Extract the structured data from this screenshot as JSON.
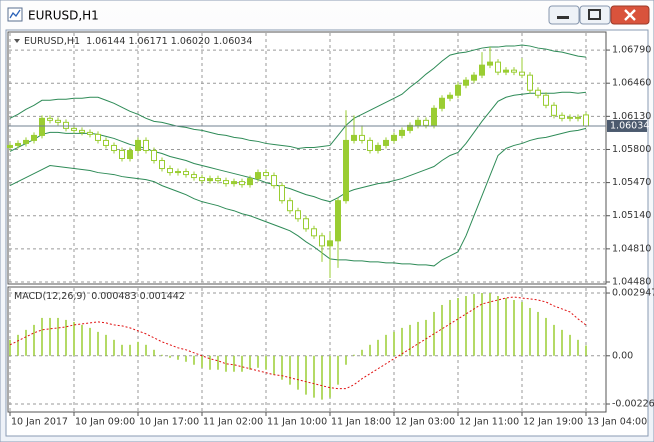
{
  "window": {
    "title": "EURUSD,H1"
  },
  "chart_data": [
    {
      "type": "candlestick",
      "label": "EURUSD,H1",
      "header_values": [
        {
          "value": 1.06144,
          "label": "1.06144"
        },
        {
          "value": 1.06171,
          "label": "1.06171"
        },
        {
          "value": 1.0602,
          "label": "1.06020"
        },
        {
          "value": 1.06034,
          "label": "1.06034"
        }
      ],
      "categories": [
        "10 Jan 2017",
        null,
        null,
        null,
        null,
        null,
        null,
        null,
        "10 Jan 09:00",
        null,
        null,
        null,
        null,
        null,
        null,
        null,
        "10 Jan 17:00",
        null,
        null,
        null,
        null,
        null,
        null,
        null,
        "11 Jan 02:00",
        null,
        null,
        null,
        null,
        null,
        null,
        null,
        "11 Jan 10:00",
        null,
        null,
        null,
        null,
        null,
        null,
        null,
        "11 Jan 18:00",
        null,
        null,
        null,
        null,
        null,
        null,
        null,
        "12 Jan 03:00",
        null,
        null,
        null,
        null,
        null,
        null,
        null,
        "12 Jan 11:00",
        null,
        null,
        null,
        null,
        null,
        null,
        null,
        "12 Jan 19:00",
        null,
        null,
        null,
        null,
        null,
        null,
        null,
        "13 Jan 04:00"
      ],
      "open": [
        1.0582,
        1.0584,
        1.0586,
        1.0589,
        1.0594,
        1.0611,
        1.0609,
        1.0607,
        1.0601,
        1.0599,
        1.0597,
        1.0595,
        1.0589,
        1.0584,
        1.0579,
        1.0571,
        1.0579,
        1.0589,
        1.0579,
        1.0569,
        1.0561,
        1.0557,
        1.0558,
        1.0555,
        1.0552,
        1.0549,
        1.0551,
        1.0549,
        1.0546,
        1.0548,
        1.0545,
        1.0551,
        1.0557,
        1.0554,
        1.0544,
        1.0529,
        1.0519,
        1.0511,
        1.0501,
        1.0494,
        1.0484,
        1.0489,
        1.0529,
        1.0589,
        1.0594,
        1.0589,
        1.0579,
        1.0584,
        1.0589,
        1.0594,
        1.0599,
        1.0604,
        1.0609,
        1.0604,
        1.0621,
        1.0631,
        1.0634,
        1.0644,
        1.0649,
        1.0654,
        1.0664,
        1.0667,
        1.0657,
        1.0659,
        1.0657,
        1.0654,
        1.0639,
        1.0634,
        1.0624,
        1.0614,
        1.0611,
        1.0612,
        1.06144
      ],
      "high": [
        1.0587,
        1.0589,
        1.0592,
        1.0597,
        1.0614,
        1.0614,
        1.0612,
        1.061,
        1.0604,
        1.0602,
        1.06,
        1.0598,
        1.0592,
        1.0587,
        1.0582,
        1.0582,
        1.0592,
        1.0592,
        1.0582,
        1.0572,
        1.0564,
        1.0561,
        1.0561,
        1.0558,
        1.0555,
        1.0554,
        1.0554,
        1.0552,
        1.0551,
        1.0551,
        1.0554,
        1.056,
        1.056,
        1.0557,
        1.0547,
        1.0532,
        1.0522,
        1.0514,
        1.0504,
        1.0497,
        1.0498,
        1.0532,
        1.0619,
        1.0614,
        1.0604,
        1.0592,
        1.0587,
        1.0592,
        1.0597,
        1.0602,
        1.0607,
        1.0612,
        1.0612,
        1.0624,
        1.0634,
        1.0637,
        1.0647,
        1.0652,
        1.0657,
        1.0677,
        1.0682,
        1.067,
        1.0662,
        1.0662,
        1.0671,
        1.0657,
        1.0642,
        1.0637,
        1.0627,
        1.0617,
        1.0615,
        1.0615,
        1.06171
      ],
      "low": [
        1.0579,
        1.0581,
        1.0583,
        1.0586,
        1.0591,
        1.0606,
        1.0604,
        1.0598,
        1.0596,
        1.0594,
        1.0592,
        1.0586,
        1.0581,
        1.0576,
        1.0568,
        1.0568,
        1.0576,
        1.0576,
        1.0566,
        1.0558,
        1.0554,
        1.0554,
        1.0552,
        1.0549,
        1.0546,
        1.0546,
        1.0546,
        1.0543,
        1.0543,
        1.0542,
        1.0542,
        1.0548,
        1.0551,
        1.0541,
        1.0526,
        1.0516,
        1.0508,
        1.0498,
        1.0491,
        1.0468,
        1.0452,
        1.0462,
        1.0526,
        1.0586,
        1.0586,
        1.0576,
        1.0576,
        1.0581,
        1.0586,
        1.0591,
        1.0596,
        1.0601,
        1.0601,
        1.0601,
        1.0618,
        1.0628,
        1.0631,
        1.0641,
        1.0646,
        1.0651,
        1.0661,
        1.0654,
        1.0654,
        1.0654,
        1.0651,
        1.0636,
        1.0631,
        1.0621,
        1.0611,
        1.0608,
        1.0608,
        1.0608,
        1.0602
      ],
      "close": [
        1.0584,
        1.0586,
        1.0589,
        1.0594,
        1.0611,
        1.0609,
        1.0607,
        1.0601,
        1.0599,
        1.0597,
        1.0595,
        1.0589,
        1.0584,
        1.0579,
        1.0571,
        1.0579,
        1.0589,
        1.0579,
        1.0569,
        1.0561,
        1.0557,
        1.0558,
        1.0555,
        1.0552,
        1.0549,
        1.0551,
        1.0549,
        1.0546,
        1.0548,
        1.0545,
        1.0551,
        1.0557,
        1.0554,
        1.0544,
        1.0529,
        1.0519,
        1.0511,
        1.0501,
        1.0494,
        1.0484,
        1.0489,
        1.0529,
        1.0589,
        1.0594,
        1.0589,
        1.0579,
        1.0584,
        1.0589,
        1.0594,
        1.0599,
        1.0604,
        1.0609,
        1.0604,
        1.0621,
        1.0631,
        1.0634,
        1.0644,
        1.0649,
        1.0654,
        1.0664,
        1.0667,
        1.0657,
        1.0659,
        1.0657,
        1.0654,
        1.0639,
        1.0634,
        1.0624,
        1.0614,
        1.0611,
        1.0612,
        1.0611,
        1.06034
      ],
      "color": "#9acd32",
      "overlays": [
        {
          "color": "#2e8b57",
          "values": [
            1.0611,
            1.0615,
            1.062,
            1.0624,
            1.0629,
            1.0629,
            1.063,
            1.063,
            1.0631,
            1.0631,
            1.0632,
            1.0632,
            1.0629,
            1.0626,
            1.0622,
            1.0618,
            1.0615,
            1.0611,
            1.0608,
            1.0607,
            1.0605,
            1.0603,
            1.0602,
            1.06,
            1.0599,
            1.0597,
            1.0595,
            1.0594,
            1.0592,
            1.0591,
            1.0589,
            1.0588,
            1.0586,
            1.0585,
            1.0584,
            1.0583,
            1.0581,
            1.0582,
            1.0582,
            1.0583,
            1.0584,
            1.0594,
            1.0604,
            1.0611,
            1.0615,
            1.0619,
            1.0623,
            1.0627,
            1.0631,
            1.0635,
            1.0642,
            1.0648,
            1.0655,
            1.0661,
            1.0668,
            1.0674,
            1.0676,
            1.0677,
            1.0679,
            1.0681,
            1.0682,
            1.0682,
            1.0683,
            1.0683,
            1.0684,
            1.0683,
            1.0681,
            1.068,
            1.0678,
            1.0677,
            1.0675,
            1.0673,
            1.0672
          ]
        },
        {
          "color": "#2e8b57",
          "values": [
            1.0578,
            1.0582,
            1.0586,
            1.059,
            1.0595,
            1.0597,
            1.0597,
            1.0596,
            1.0596,
            1.0596,
            1.0596,
            1.0595,
            1.0593,
            1.0591,
            1.0588,
            1.0585,
            1.0583,
            1.0581,
            1.0578,
            1.0576,
            1.0573,
            1.0571,
            1.0569,
            1.0566,
            1.0564,
            1.0562,
            1.056,
            1.0558,
            1.0556,
            1.0554,
            1.0552,
            1.055,
            1.0547,
            1.0545,
            1.0543,
            1.0541,
            1.0538,
            1.0535,
            1.0533,
            1.053,
            1.0528,
            1.0532,
            1.0537,
            1.054,
            1.0542,
            1.0544,
            1.0546,
            1.0547,
            1.0549,
            1.0551,
            1.0554,
            1.0557,
            1.056,
            1.0563,
            1.0569,
            1.0574,
            1.0577,
            1.0586,
            1.0597,
            1.0608,
            1.0618,
            1.0628,
            1.0632,
            1.0634,
            1.0635,
            1.0636,
            1.0636,
            1.0636,
            1.0636,
            1.0637,
            1.0637,
            1.0636,
            1.0637
          ]
        },
        {
          "color": "#2e8b57",
          "values": [
            1.0544,
            1.0548,
            1.0552,
            1.0556,
            1.056,
            1.0564,
            1.0563,
            1.0562,
            1.0561,
            1.056,
            1.0559,
            1.0557,
            1.0556,
            1.0555,
            1.0553,
            1.0552,
            1.0551,
            1.055,
            1.0548,
            1.0544,
            1.0541,
            1.0538,
            1.0535,
            1.0531,
            1.0528,
            1.0526,
            1.0524,
            1.0521,
            1.0519,
            1.0516,
            1.0514,
            1.0511,
            1.0508,
            1.0505,
            1.0502,
            1.0499,
            1.0494,
            1.0488,
            1.0483,
            1.0477,
            1.0471,
            1.047,
            1.047,
            1.0469,
            1.0469,
            1.0468,
            1.0468,
            1.0467,
            1.0467,
            1.0466,
            1.0466,
            1.0465,
            1.0465,
            1.0464,
            1.047,
            1.0474,
            1.0478,
            1.0494,
            1.0514,
            1.0534,
            1.0554,
            1.0574,
            1.0581,
            1.0584,
            1.0586,
            1.0589,
            1.0591,
            1.0592,
            1.0594,
            1.0596,
            1.0598,
            1.0599,
            1.0601
          ]
        }
      ],
      "price_line": {
        "value": 1.06034,
        "label": "1.06034",
        "color": "#708090"
      },
      "ylim": [
        1.0446,
        1.0697
      ],
      "yticks": [
        {
          "value": 1.0679,
          "label": "1.06790"
        },
        {
          "value": 1.0646,
          "label": "1.06460"
        },
        {
          "value": 1.0613,
          "label": "1.06130"
        },
        {
          "value": 1.058,
          "label": "1.05800"
        },
        {
          "value": 1.0547,
          "label": "1.05470"
        },
        {
          "value": 1.0514,
          "label": "1.05140"
        },
        {
          "value": 1.0481,
          "label": "1.04810"
        },
        {
          "value": 1.0448,
          "label": "1.04480"
        }
      ],
      "grid": true
    },
    {
      "type": "macd",
      "title": "MACD(12,26,9)",
      "values": [
        0.000749,
        0.000983,
        0.001217,
        0.001451,
        0.001778,
        0.001778,
        0.001778,
        0.001685,
        0.001591,
        0.001451,
        0.00131,
        0.001123,
        0.000983,
        0.000749,
        0.000515,
        0.000515,
        0.000655,
        0.000515,
        0.000281,
        4.7e-05,
        -9.4e-05,
        -0.000187,
        -0.000281,
        -0.000421,
        -0.000562,
        -0.000655,
        -0.000655,
        -0.000749,
        -0.000749,
        -0.000749,
        -0.000655,
        -0.000562,
        -0.000655,
        -0.000889,
        -0.001123,
        -0.001357,
        -0.001591,
        -0.001825,
        -0.001966,
        -0.002059,
        -0.001966,
        -0.001357,
        -0.000421,
        5e-05,
        0.000281,
        0.000515,
        0.000749,
        0.000983,
        0.001123,
        0.00131,
        0.001451,
        0.001591,
        0.001685,
        0.002059,
        0.002387,
        0.002621,
        0.002714,
        0.002808,
        0.002902,
        0.002947,
        0.002947,
        0.002808,
        0.002714,
        0.002621,
        0.002527,
        0.002246,
        0.002059,
        0.001778,
        0.001451,
        0.001217,
        0.000983,
        0.000749,
        0.000483
      ],
      "color": "#9acd32",
      "signal": {
        "color": "#e01010",
        "values": [
          0.000515,
          0.000702,
          0.000889,
          0.001076,
          0.001217,
          0.001264,
          0.00131,
          0.001357,
          0.001451,
          0.001498,
          0.001544,
          0.001591,
          0.001544,
          0.001451,
          0.001404,
          0.00131,
          0.00117,
          0.00103,
          0.000842,
          0.000655,
          0.000515,
          0.000374,
          0.000281,
          0.00014,
          0,
          -0.00014,
          -0.000234,
          -0.000374,
          -0.000421,
          -0.000515,
          -0.000608,
          -0.000702,
          -0.000796,
          -0.000889,
          -0.000936,
          -0.00103,
          -0.001123,
          -0.001217,
          -0.00131,
          -0.001404,
          -0.001498,
          -0.001544,
          -0.001544,
          -0.001357,
          -0.001076,
          -0.000842,
          -0.000608,
          -0.000374,
          -0.00014,
          9.4e-05,
          0.000328,
          0.000562,
          0.000796,
          0.00103,
          0.001264,
          0.001498,
          0.001732,
          0.001966,
          0.0022,
          0.002434,
          0.002527,
          0.002621,
          0.002714,
          0.002761,
          0.002714,
          0.002668,
          0.002621,
          0.002527,
          0.00234,
          0.0022,
          0.002059,
          0.001732,
          0.001442
        ]
      },
      "ylim": [
        -0.00264,
        0.00323
      ],
      "yticks": [
        0.002947,
        {
          "value": 0,
          "label": "0.00"
        },
        -0.002265
      ],
      "grid": true
    }
  ]
}
